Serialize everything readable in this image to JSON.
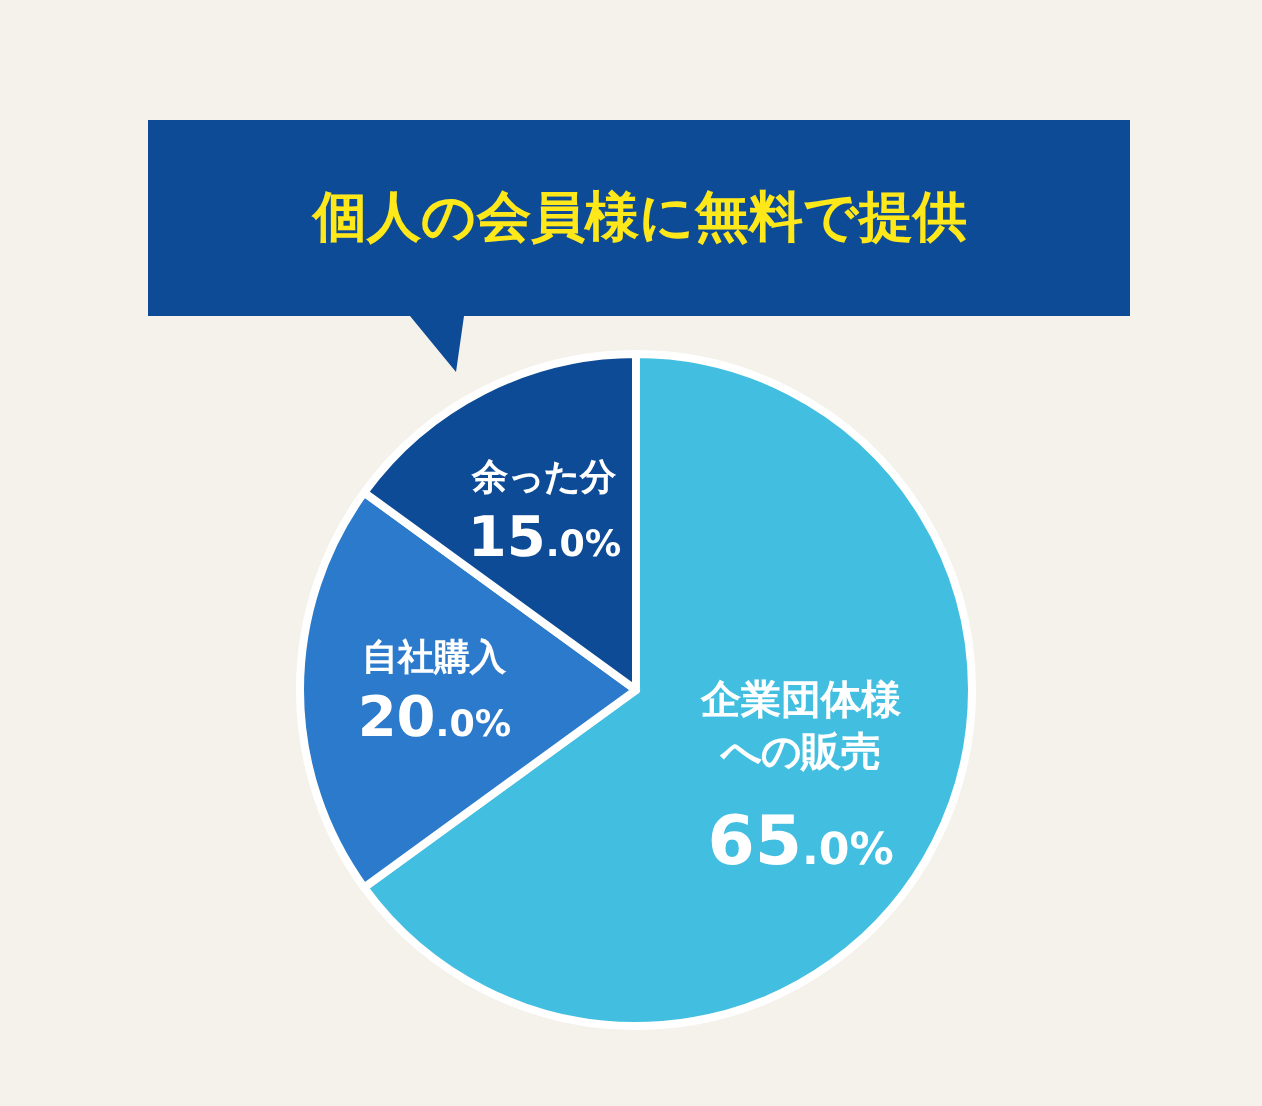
{
  "chart_data": {
    "type": "pie",
    "title": "個人の会員様に無料で提供",
    "categories": [
      "企業団体様への販売",
      "自社購入",
      "余った分"
    ],
    "values": [
      65,
      20,
      15
    ],
    "colors": [
      "#42bfe0",
      "#2b7acb",
      "#0e4b96"
    ],
    "value_labels": [
      "65.0%",
      "20.0%",
      "15.0%"
    ],
    "legend": false
  }
}
